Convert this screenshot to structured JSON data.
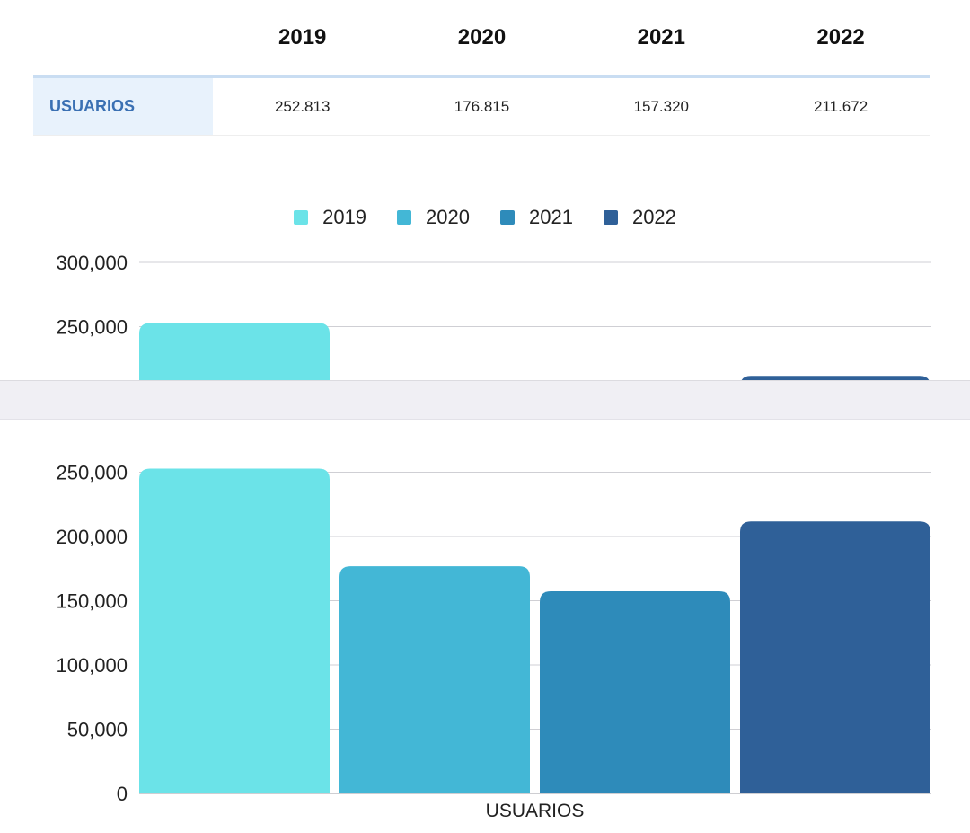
{
  "table": {
    "columns": [
      "2019",
      "2020",
      "2021",
      "2022"
    ],
    "rows": [
      {
        "label": "USUARIOS",
        "values": [
          "252.813",
          "176.815",
          "157.320",
          "211.672"
        ]
      }
    ]
  },
  "chart_data": {
    "type": "bar",
    "categories": [
      "USUARIOS"
    ],
    "series": [
      {
        "name": "2019",
        "color": "#6be3e8",
        "values": [
          252813
        ]
      },
      {
        "name": "2020",
        "color": "#43b7d6",
        "values": [
          176815
        ]
      },
      {
        "name": "2021",
        "color": "#2e8bba",
        "values": [
          157320
        ]
      },
      {
        "name": "2022",
        "color": "#2f6098",
        "values": [
          211672
        ]
      }
    ],
    "title": "",
    "xlabel": "",
    "ylabel": "",
    "ylim": [
      0,
      300000
    ],
    "yticks": [
      0,
      50000,
      100000,
      150000,
      200000,
      250000,
      300000
    ],
    "ytick_labels": [
      "0",
      "50,000",
      "100,000",
      "150,000",
      "200,000",
      "250,000",
      "300,000"
    ],
    "grid": true,
    "legend": "top-center"
  }
}
